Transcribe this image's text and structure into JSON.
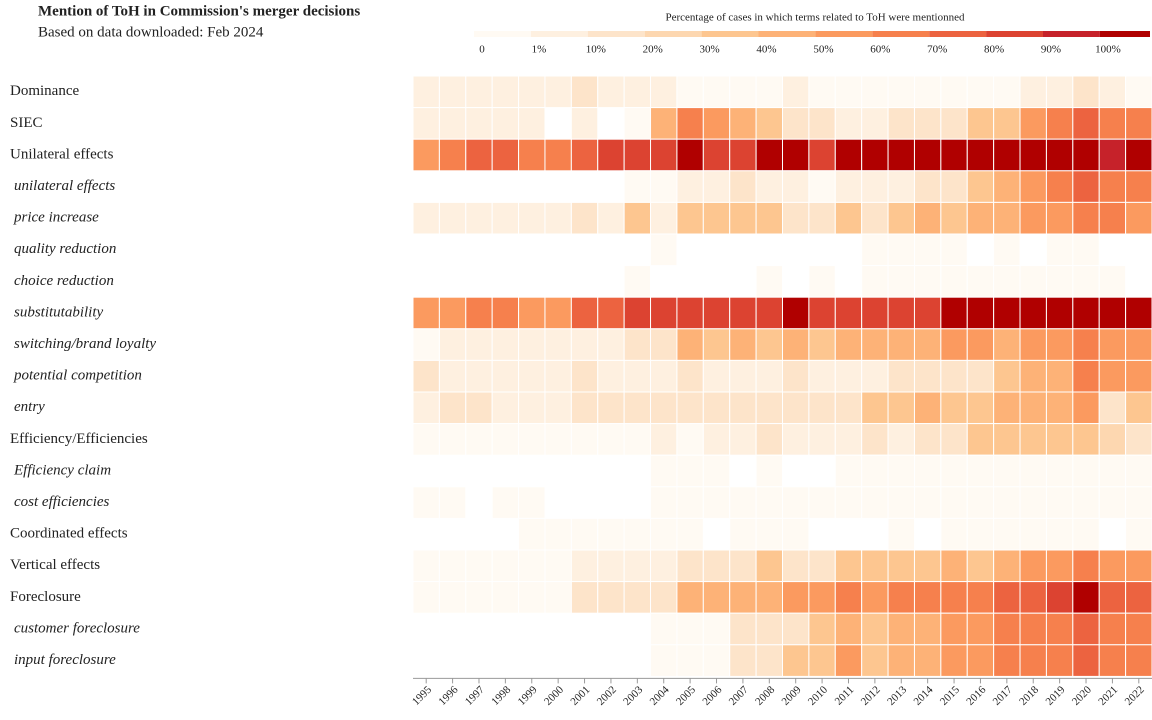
{
  "chart_data": {
    "type": "heatmap",
    "title": "Mention of ToH in Commission's merger decisions",
    "subtitle": "Based on data downloaded: Feb 2024",
    "legend": {
      "title": "Percentage of cases in which terms related to ToH were mentionned",
      "ticks": [
        0,
        {
          "value": 1,
          "label": "1%"
        },
        {
          "value": 10,
          "label": "10%"
        },
        {
          "value": 20,
          "label": "20%"
        },
        {
          "value": 30,
          "label": "30%"
        },
        {
          "value": 40,
          "label": "40%"
        },
        {
          "value": 50,
          "label": "50%"
        },
        {
          "value": 60,
          "label": "60%"
        },
        {
          "value": 70,
          "label": "70%"
        },
        {
          "value": 80,
          "label": "80%"
        },
        {
          "value": 90,
          "label": "90%"
        },
        {
          "value": 100,
          "label": "100%"
        }
      ],
      "colors": [
        "#fffaf3",
        "#fef0e0",
        "#fde4ca",
        "#fdd7b0",
        "#fdc690",
        "#fdb277",
        "#fb9a5f",
        "#f6804d",
        "#ec6340",
        "#dc4331",
        "#c6222a",
        "#b00000"
      ]
    },
    "categories": [
      "1995",
      "1996",
      "1997",
      "1998",
      "1999",
      "2000",
      "2001",
      "2002",
      "2003",
      "2004",
      "2005",
      "2006",
      "2007",
      "2008",
      "2009",
      "2010",
      "2011",
      "2012",
      "2013",
      "2014",
      "2015",
      "2016",
      "2017",
      "2018",
      "2019",
      "2020",
      "2021",
      "2022"
    ],
    "rows": [
      {
        "name": "Dominance",
        "values": [
          5,
          5,
          5,
          5,
          5,
          5,
          15,
          5,
          5,
          5,
          0,
          0,
          0,
          0,
          5,
          0,
          0,
          0,
          0,
          0,
          0,
          0,
          0,
          5,
          5,
          15,
          5,
          0
        ]
      },
      {
        "name": "SIEC",
        "values": [
          5,
          5,
          5,
          5,
          5,
          null,
          5,
          null,
          0,
          45,
          65,
          55,
          45,
          35,
          15,
          15,
          5,
          5,
          15,
          15,
          15,
          35,
          35,
          55,
          65,
          75,
          65,
          65
        ]
      },
      {
        "name": "Unilateral effects",
        "values": [
          55,
          65,
          75,
          75,
          65,
          65,
          75,
          85,
          85,
          85,
          100,
          85,
          85,
          100,
          100,
          85,
          100,
          100,
          100,
          100,
          100,
          100,
          100,
          100,
          100,
          100,
          95,
          100
        ]
      },
      {
        "name": "unilateral effects",
        "values": [
          null,
          null,
          null,
          null,
          null,
          null,
          null,
          null,
          0,
          0,
          5,
          5,
          15,
          5,
          5,
          0,
          5,
          5,
          5,
          15,
          15,
          35,
          45,
          55,
          65,
          75,
          65,
          65
        ]
      },
      {
        "name": "price increase",
        "values": [
          5,
          5,
          5,
          5,
          5,
          5,
          15,
          5,
          35,
          5,
          35,
          35,
          35,
          35,
          15,
          15,
          35,
          15,
          35,
          45,
          35,
          45,
          45,
          55,
          55,
          65,
          65,
          55
        ]
      },
      {
        "name": "quality reduction",
        "values": [
          null,
          null,
          null,
          null,
          null,
          null,
          null,
          null,
          null,
          0,
          null,
          null,
          null,
          null,
          null,
          null,
          null,
          0,
          0,
          0,
          0,
          null,
          0,
          null,
          0,
          0,
          null,
          null
        ]
      },
      {
        "name": "choice reduction",
        "values": [
          null,
          null,
          null,
          null,
          null,
          null,
          null,
          null,
          0,
          null,
          null,
          null,
          null,
          0,
          null,
          0,
          null,
          0,
          0,
          0,
          0,
          0,
          0,
          0,
          0,
          0,
          0,
          null
        ]
      },
      {
        "name": "substitutability",
        "values": [
          55,
          55,
          65,
          65,
          55,
          55,
          75,
          75,
          85,
          85,
          85,
          85,
          85,
          85,
          100,
          85,
          85,
          85,
          85,
          85,
          100,
          100,
          100,
          100,
          100,
          100,
          100,
          100
        ]
      },
      {
        "name": "switching/brand loyalty",
        "values": [
          0,
          5,
          5,
          5,
          5,
          5,
          5,
          5,
          15,
          15,
          45,
          35,
          45,
          35,
          45,
          35,
          45,
          45,
          45,
          45,
          55,
          55,
          45,
          55,
          55,
          65,
          55,
          55
        ]
      },
      {
        "name": "potential competition",
        "values": [
          15,
          5,
          5,
          5,
          5,
          5,
          15,
          5,
          5,
          5,
          15,
          5,
          5,
          5,
          15,
          5,
          5,
          5,
          15,
          15,
          15,
          15,
          35,
          45,
          45,
          65,
          55,
          55
        ]
      },
      {
        "name": "entry",
        "values": [
          5,
          15,
          15,
          5,
          5,
          5,
          15,
          15,
          15,
          15,
          15,
          15,
          15,
          15,
          15,
          15,
          15,
          35,
          35,
          45,
          35,
          35,
          45,
          45,
          45,
          55,
          15,
          35
        ]
      },
      {
        "name": "Efficiency/Efficiencies",
        "values": [
          0,
          0,
          0,
          0,
          0,
          0,
          0,
          0,
          0,
          5,
          0,
          5,
          5,
          15,
          5,
          5,
          5,
          15,
          5,
          15,
          15,
          35,
          35,
          35,
          35,
          35,
          25,
          15
        ]
      },
      {
        "name": "Efficiency claim",
        "values": [
          null,
          null,
          null,
          null,
          null,
          null,
          null,
          null,
          null,
          0,
          0,
          0,
          null,
          0,
          null,
          null,
          0,
          0,
          0,
          0,
          0,
          0,
          0,
          0,
          0,
          0,
          0,
          0
        ]
      },
      {
        "name": "cost efficiencies",
        "values": [
          0,
          0,
          null,
          0,
          0,
          null,
          null,
          null,
          null,
          0,
          0,
          0,
          0,
          0,
          0,
          0,
          0,
          0,
          0,
          0,
          0,
          0,
          0,
          0,
          0,
          0,
          0,
          0
        ]
      },
      {
        "name": "Coordinated effects",
        "values": [
          null,
          null,
          null,
          null,
          0,
          0,
          0,
          0,
          0,
          0,
          0,
          null,
          0,
          0,
          0,
          null,
          null,
          null,
          0,
          null,
          0,
          0,
          0,
          0,
          0,
          0,
          null,
          0
        ]
      },
      {
        "name": "Vertical effects",
        "values": [
          0,
          0,
          0,
          0,
          0,
          0,
          5,
          5,
          5,
          5,
          15,
          15,
          15,
          35,
          15,
          15,
          35,
          35,
          35,
          35,
          45,
          35,
          45,
          55,
          55,
          65,
          55,
          55
        ]
      },
      {
        "name": "Foreclosure",
        "values": [
          0,
          0,
          0,
          0,
          0,
          0,
          15,
          15,
          15,
          15,
          45,
          45,
          45,
          45,
          55,
          55,
          65,
          55,
          65,
          65,
          65,
          65,
          75,
          75,
          85,
          100,
          75,
          75
        ]
      },
      {
        "name": "customer foreclosure",
        "values": [
          null,
          null,
          null,
          null,
          null,
          null,
          null,
          null,
          null,
          0,
          0,
          0,
          15,
          15,
          15,
          35,
          45,
          35,
          45,
          45,
          55,
          55,
          65,
          65,
          65,
          75,
          65,
          65
        ]
      },
      {
        "name": "input foreclosure",
        "values": [
          null,
          null,
          null,
          null,
          null,
          null,
          null,
          null,
          null,
          0,
          0,
          0,
          15,
          15,
          35,
          35,
          55,
          35,
          45,
          45,
          55,
          55,
          65,
          65,
          65,
          75,
          65,
          65
        ]
      }
    ]
  }
}
